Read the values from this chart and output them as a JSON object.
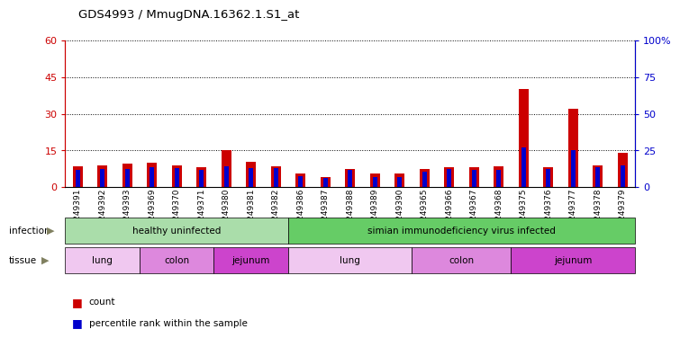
{
  "title": "GDS4993 / MmugDNA.16362.1.S1_at",
  "samples": [
    "GSM1249391",
    "GSM1249392",
    "GSM1249393",
    "GSM1249369",
    "GSM1249370",
    "GSM1249371",
    "GSM1249380",
    "GSM1249381",
    "GSM1249382",
    "GSM1249386",
    "GSM1249387",
    "GSM1249388",
    "GSM1249389",
    "GSM1249390",
    "GSM1249365",
    "GSM1249366",
    "GSM1249367",
    "GSM1249368",
    "GSM1249375",
    "GSM1249376",
    "GSM1249377",
    "GSM1249378",
    "GSM1249379"
  ],
  "counts": [
    8.5,
    9.0,
    9.5,
    10.0,
    9.0,
    8.0,
    15.0,
    10.5,
    8.5,
    5.5,
    4.0,
    7.5,
    5.5,
    5.5,
    7.5,
    8.0,
    8.0,
    8.5,
    40.0,
    8.0,
    32.0,
    9.0,
    14.0
  ],
  "percentiles": [
    12.0,
    12.5,
    12.5,
    13.5,
    13.0,
    12.0,
    14.5,
    13.0,
    13.0,
    7.5,
    6.0,
    12.0,
    7.0,
    7.0,
    10.5,
    12.5,
    12.0,
    12.0,
    27.0,
    12.5,
    25.0,
    13.5,
    15.0
  ],
  "left_yticks": [
    0,
    15,
    30,
    45,
    60
  ],
  "right_yticks": [
    0,
    25,
    50,
    75,
    100
  ],
  "ylim_left": [
    0,
    60
  ],
  "ylim_right": [
    0,
    100
  ],
  "bar_color_count": "#cc0000",
  "bar_color_pct": "#0000cc",
  "infection_healthy_color": "#aaddaa",
  "infection_siv_color": "#66cc66",
  "tissue_lung_color": "#f0c8f0",
  "tissue_colon_color": "#dd88dd",
  "tissue_jejunum_color": "#cc44cc",
  "infection_groups": [
    {
      "label": "healthy uninfected",
      "start": 0,
      "end": 9
    },
    {
      "label": "simian immunodeficiency virus infected",
      "start": 9,
      "end": 23
    }
  ],
  "tissue_groups": [
    {
      "label": "lung",
      "start": 0,
      "end": 3
    },
    {
      "label": "colon",
      "start": 3,
      "end": 6
    },
    {
      "label": "jejunum",
      "start": 6,
      "end": 9
    },
    {
      "label": "lung",
      "start": 9,
      "end": 14
    },
    {
      "label": "colon",
      "start": 14,
      "end": 18
    },
    {
      "label": "jejunum",
      "start": 18,
      "end": 23
    }
  ],
  "legend_count": "count",
  "legend_pct": "percentile rank within the sample"
}
